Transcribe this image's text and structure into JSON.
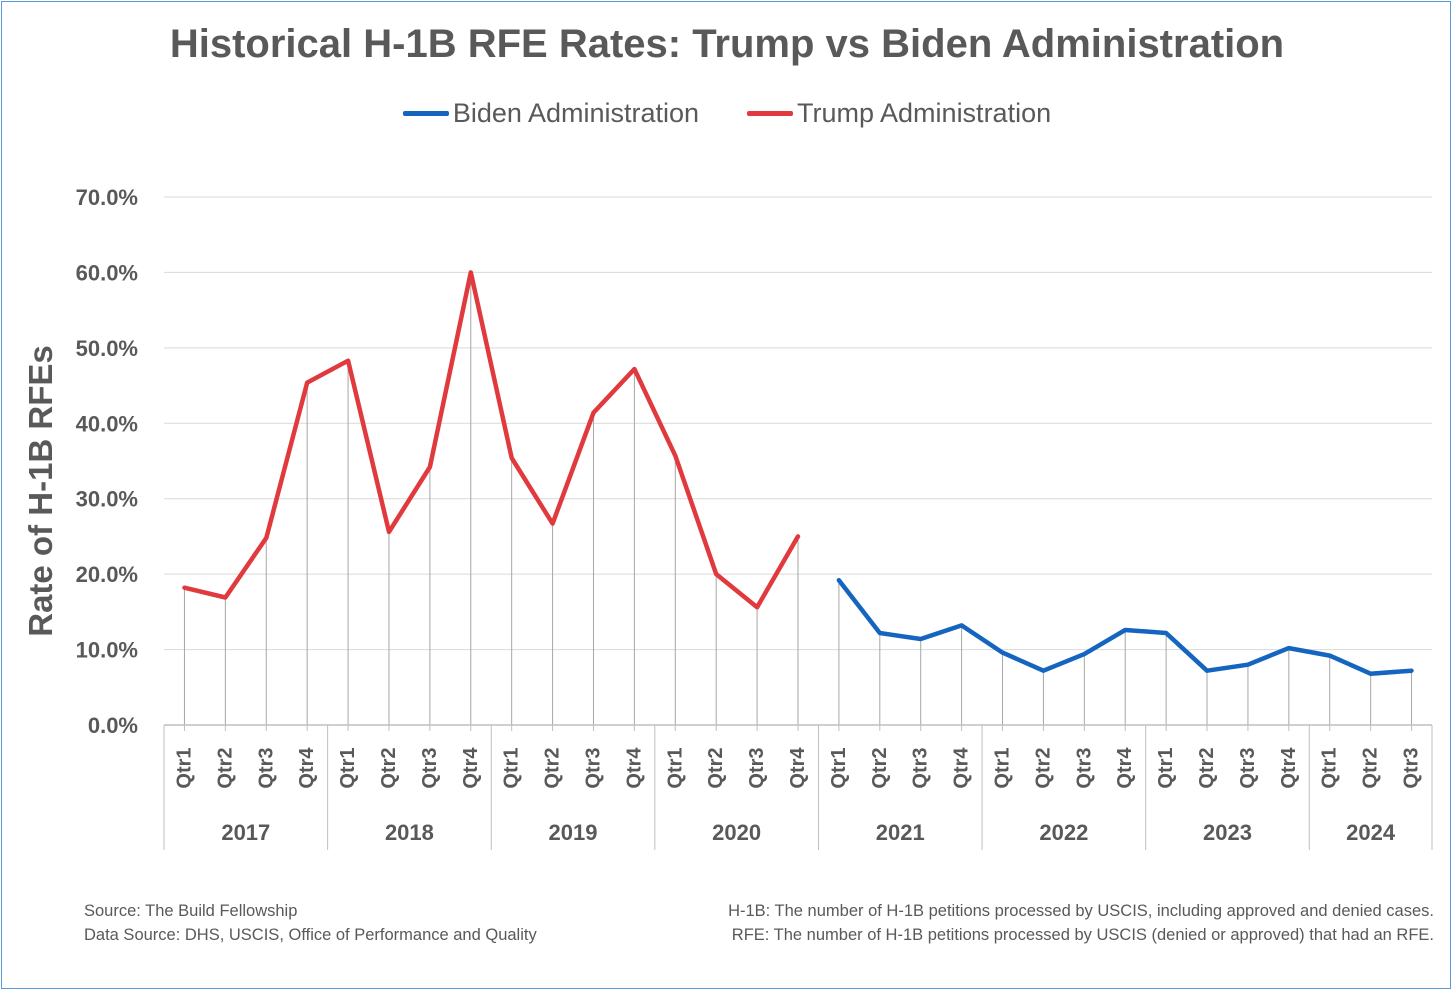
{
  "chart_data": {
    "type": "line",
    "title": "Historical H-1B RFE Rates: Trump vs Biden Administration",
    "ylabel": "Rate of H-1B RFEs",
    "xlabel": "",
    "ylim": [
      0,
      70
    ],
    "yticks": [
      "0.0%",
      "10.0%",
      "20.0%",
      "30.0%",
      "40.0%",
      "50.0%",
      "60.0%",
      "70.0%"
    ],
    "grid": true,
    "legend_position": "top",
    "years": [
      "2017",
      "2018",
      "2019",
      "2020",
      "2021",
      "2022",
      "2023",
      "2024"
    ],
    "quarters_per_year": [
      4,
      4,
      4,
      4,
      4,
      4,
      4,
      3
    ],
    "quarter_labels": [
      "Qtr1",
      "Qtr2",
      "Qtr3",
      "Qtr4"
    ],
    "series": [
      {
        "name": "Biden Administration",
        "color": "#1565c0",
        "start_index": 16,
        "values": [
          19.2,
          12.2,
          11.4,
          13.2,
          9.6,
          7.2,
          9.4,
          12.6,
          12.2,
          7.2,
          8.0,
          10.2,
          9.2,
          6.8,
          7.2
        ]
      },
      {
        "name": "Trump Administration",
        "color": "#e03a3e",
        "start_index": 0,
        "values": [
          18.2,
          16.9,
          24.8,
          45.4,
          48.3,
          25.6,
          34.2,
          60.0,
          35.4,
          26.7,
          41.4,
          47.2,
          35.7,
          20.0,
          15.6,
          25.0
        ]
      }
    ]
  },
  "footer": {
    "source": "Source: The Build Fellowship",
    "data_source": "Data Source: DHS, USCIS, Office of Performance and Quality",
    "note_h1b": "H-1B: The number of H-1B petitions processed by USCIS, including approved and denied cases.",
    "note_rfe": "RFE: The number of H-1B petitions processed by USCIS (denied or approved) that had an RFE."
  }
}
